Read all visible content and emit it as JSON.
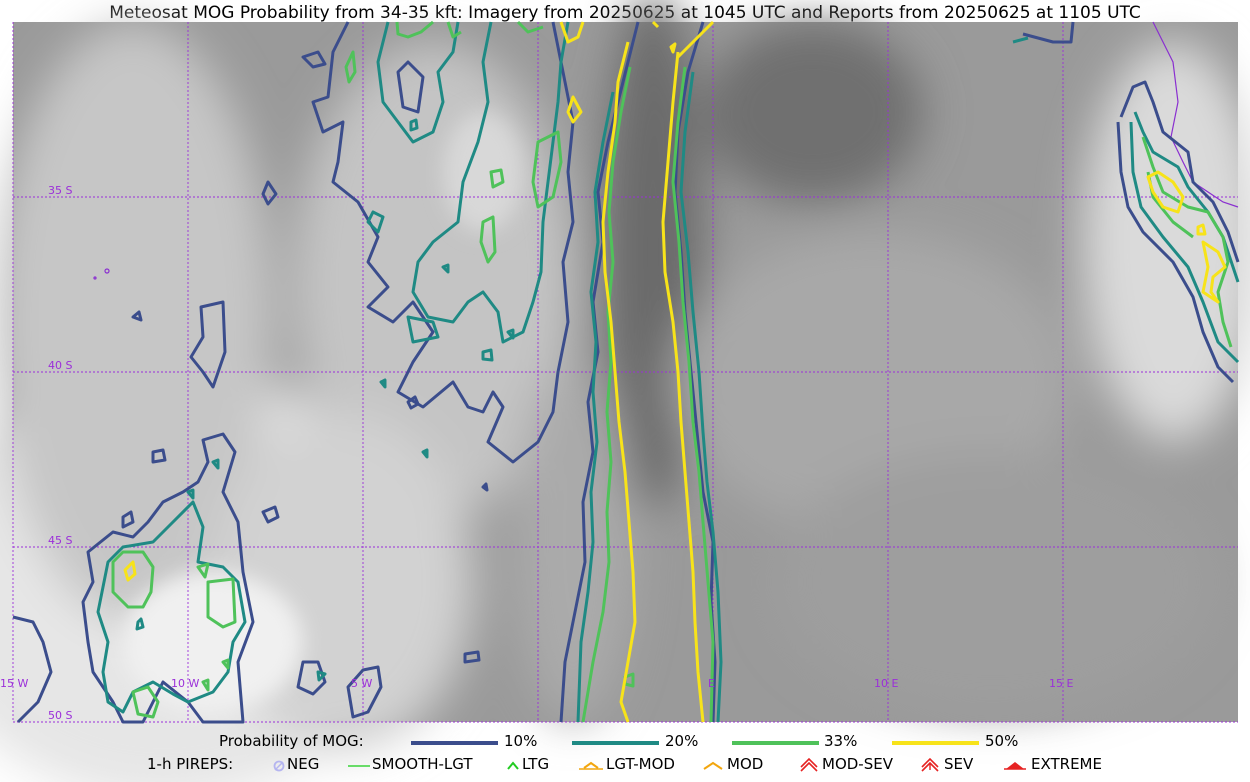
{
  "title": "Meteosat MOG Probability from 34-35 kft: Imagery from 20250625 at 1045 UTC and Reports from 20250625 at 1105 UTC",
  "map": {
    "projection": "lat-lon",
    "lon_range": [
      -15,
      20
    ],
    "lat_range": [
      -50,
      -30
    ],
    "gridline_color": "#9b2fd9",
    "lat_labels": [
      "35 S",
      "40 S",
      "45 S",
      "50 S"
    ],
    "lon_labels": [
      "15 W",
      "10 W",
      "5 W",
      "E",
      "10 E",
      "15 E"
    ]
  },
  "legend": {
    "probability_title": "Probability of MOG:",
    "levels": [
      {
        "label": "10%",
        "color": "#3b4d8c"
      },
      {
        "label": "20%",
        "color": "#1f8a84"
      },
      {
        "label": "33%",
        "color": "#4fc25a"
      },
      {
        "label": "50%",
        "color": "#f7e31a"
      }
    ],
    "pirep_title": "1-h PIREPS:",
    "pireps": [
      {
        "label": "NEG",
        "color": "#b5b5f0",
        "icon": "neg-circle-icon"
      },
      {
        "label": "SMOOTH-LGT",
        "color": "#3ad43a",
        "icon": "dash-icon"
      },
      {
        "label": "LTG",
        "color": "#22cc22",
        "icon": "caret-icon"
      },
      {
        "label": "LGT-MOD",
        "color": "#f2a60e",
        "icon": "caret-bar-icon"
      },
      {
        "label": "MOD",
        "color": "#f2a60e",
        "icon": "caret-icon"
      },
      {
        "label": "MOD-SEV",
        "color": "#e62222",
        "icon": "double-caret-icon"
      },
      {
        "label": "SEV",
        "color": "#e62222",
        "icon": "double-caret-icon"
      },
      {
        "label": "EXTREME",
        "color": "#e62222",
        "icon": "filled-caret-icon"
      }
    ]
  }
}
